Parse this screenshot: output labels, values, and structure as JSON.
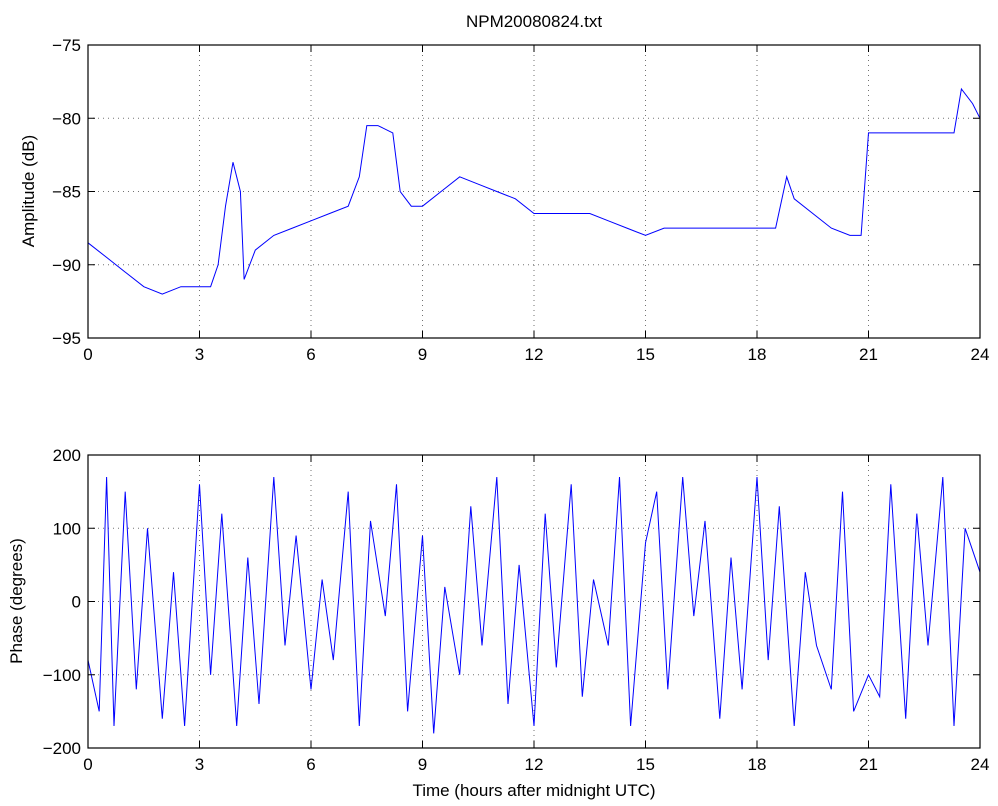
{
  "chart_data": [
    {
      "type": "line",
      "title": "NPM20080824.txt",
      "xlabel": "",
      "ylabel": "Amplitude (dB)",
      "xlim": [
        0,
        24
      ],
      "ylim": [
        -95,
        -75
      ],
      "xticks": [
        "0",
        "3",
        "6",
        "9",
        "12",
        "15",
        "18",
        "21",
        "24"
      ],
      "yticks": [
        "-95",
        "-90",
        "-85",
        "-80",
        "-75"
      ],
      "grid": true,
      "series": [
        {
          "color": "#0000ff",
          "x": [
            0,
            0.5,
            1,
            1.5,
            2,
            2.5,
            3,
            3.3,
            3.5,
            3.7,
            3.9,
            4.1,
            4.2,
            4.5,
            5,
            5.5,
            6,
            6.5,
            7,
            7.3,
            7.5,
            7.8,
            8.2,
            8.4,
            8.7,
            9,
            9.5,
            10,
            10.5,
            11,
            11.5,
            12,
            12.5,
            13,
            13.5,
            14,
            14.5,
            15,
            15.5,
            16,
            16.5,
            17,
            17.5,
            18,
            18.5,
            18.8,
            19,
            19.5,
            20,
            20.5,
            20.8,
            21,
            21.5,
            22,
            22.5,
            23,
            23.3,
            23.5,
            23.8,
            24
          ],
          "y": [
            -88.5,
            -89.5,
            -90.5,
            -91.5,
            -92,
            -91.5,
            -91.5,
            -91.5,
            -90,
            -86,
            -83,
            -85,
            -91,
            -89,
            -88,
            -87.5,
            -87,
            -86.5,
            -86,
            -84,
            -80.5,
            -80.5,
            -81,
            -85,
            -86,
            -86,
            -85,
            -84,
            -84.5,
            -85,
            -85.5,
            -86.5,
            -86.5,
            -86.5,
            -86.5,
            -87,
            -87.5,
            -88,
            -87.5,
            -87.5,
            -87.5,
            -87.5,
            -87.5,
            -87.5,
            -87.5,
            -84,
            -85.5,
            -86.5,
            -87.5,
            -88,
            -88,
            -81,
            -81,
            -81,
            -81,
            -81,
            -81,
            -78,
            -79,
            -80
          ]
        }
      ]
    },
    {
      "type": "line",
      "title": "",
      "xlabel": "Time (hours after midnight UTC)",
      "ylabel": "Phase (degrees)",
      "xlim": [
        0,
        24
      ],
      "ylim": [
        -200,
        200
      ],
      "xticks": [
        "0",
        "3",
        "6",
        "9",
        "12",
        "15",
        "18",
        "21",
        "24"
      ],
      "yticks": [
        "-200",
        "-100",
        "0",
        "100",
        "200"
      ],
      "grid": true,
      "series": [
        {
          "color": "#0000ff",
          "x": [
            0,
            0.3,
            0.5,
            0.7,
            1,
            1.3,
            1.6,
            2,
            2.3,
            2.6,
            3,
            3.3,
            3.6,
            4,
            4.3,
            4.6,
            5,
            5.3,
            5.6,
            6,
            6.3,
            6.6,
            7,
            7.3,
            7.6,
            8,
            8.3,
            8.6,
            9,
            9.3,
            9.6,
            10,
            10.3,
            10.6,
            11,
            11.3,
            11.6,
            12,
            12.3,
            12.6,
            13,
            13.3,
            13.6,
            14,
            14.3,
            14.6,
            15,
            15.3,
            15.6,
            16,
            16.3,
            16.6,
            17,
            17.3,
            17.6,
            18,
            18.3,
            18.6,
            19,
            19.3,
            19.6,
            20,
            20.3,
            20.6,
            21,
            21.3,
            21.6,
            22,
            22.3,
            22.6,
            23,
            23.3,
            23.6,
            24
          ],
          "y": [
            -80,
            -150,
            170,
            -170,
            150,
            -120,
            100,
            -160,
            40,
            -170,
            160,
            -100,
            120,
            -170,
            60,
            -140,
            170,
            -60,
            90,
            -120,
            30,
            -80,
            150,
            -170,
            110,
            -20,
            160,
            -150,
            90,
            -180,
            20,
            -100,
            130,
            -60,
            170,
            -140,
            50,
            -170,
            120,
            -90,
            160,
            -130,
            30,
            -60,
            170,
            -170,
            80,
            150,
            -120,
            170,
            -20,
            110,
            -160,
            60,
            -120,
            170,
            -80,
            130,
            -170,
            40,
            -60,
            -120,
            150,
            -150,
            -100,
            -130,
            160,
            -160,
            120,
            -60,
            170,
            -170,
            100,
            40
          ]
        }
      ]
    }
  ]
}
